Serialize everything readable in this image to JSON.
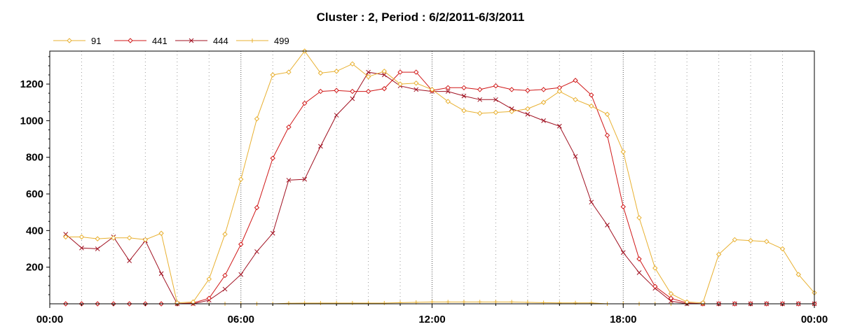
{
  "chart_data": {
    "type": "line",
    "title": "Cluster : 2, Period : 6/2/2011-6/3/2011",
    "xlabel": "",
    "ylabel": "",
    "x_ticks": [
      "00:00",
      "06:00",
      "12:00",
      "18:00",
      "00:00"
    ],
    "y_ticks": [
      200,
      400,
      600,
      800,
      1000,
      1200
    ],
    "xlim_hours": [
      0,
      24
    ],
    "ylim": [
      0,
      1380
    ],
    "grid": "vertical dotted lines every hour",
    "legend_position": "top-left",
    "x_hours": [
      0.5,
      1,
      1.5,
      2,
      2.5,
      3,
      3.5,
      4,
      4.5,
      5,
      5.5,
      6,
      6.5,
      7,
      7.5,
      8,
      8.5,
      9,
      9.5,
      10,
      10.5,
      11,
      11.5,
      12,
      12.5,
      13,
      13.5,
      14,
      14.5,
      15,
      15.5,
      16,
      16.5,
      17,
      17.5,
      18,
      18.5,
      19,
      19.5,
      20,
      20.5,
      21,
      21.5,
      22,
      22.5,
      23,
      23.5,
      24
    ],
    "series": [
      {
        "name": "91",
        "color": "#E8B030",
        "marker": "diamond",
        "values": [
          365,
          365,
          355,
          360,
          360,
          350,
          385,
          5,
          10,
          135,
          380,
          680,
          1010,
          1250,
          1265,
          1380,
          1260,
          1270,
          1310,
          1240,
          1270,
          1200,
          1205,
          1170,
          1105,
          1055,
          1040,
          1045,
          1050,
          1065,
          1100,
          1160,
          1115,
          1080,
          1035,
          830,
          470,
          195,
          55,
          10,
          5,
          270,
          350,
          345,
          340,
          300,
          160,
          60
        ]
      },
      {
        "name": "441",
        "color": "#D01818",
        "marker": "diamond",
        "values": [
          0,
          0,
          0,
          0,
          0,
          0,
          0,
          0,
          5,
          30,
          155,
          325,
          525,
          795,
          965,
          1095,
          1160,
          1165,
          1160,
          1160,
          1175,
          1265,
          1265,
          1165,
          1180,
          1180,
          1170,
          1190,
          1170,
          1165,
          1170,
          1180,
          1220,
          1140,
          920,
          530,
          245,
          95,
          30,
          5,
          0,
          0,
          0,
          0,
          0,
          0,
          0,
          0
        ]
      },
      {
        "name": "444",
        "color": "#A01020",
        "marker": "x",
        "values": [
          380,
          305,
          300,
          365,
          235,
          345,
          165,
          0,
          0,
          20,
          80,
          160,
          285,
          385,
          675,
          680,
          860,
          1030,
          1120,
          1265,
          1250,
          1190,
          1170,
          1160,
          1160,
          1135,
          1115,
          1115,
          1065,
          1035,
          1000,
          970,
          805,
          555,
          430,
          280,
          170,
          85,
          15,
          0,
          0,
          0,
          0,
          0,
          0,
          0,
          0,
          0
        ]
      },
      {
        "name": "499",
        "color": "#E8B030",
        "marker": "plus",
        "values": [
          0,
          0,
          0,
          0,
          0,
          0,
          0,
          0,
          0,
          0,
          0,
          0,
          0,
          0,
          3,
          4,
          4,
          4,
          4,
          4,
          4,
          6,
          8,
          10,
          10,
          10,
          10,
          10,
          10,
          8,
          6,
          5,
          5,
          5,
          0,
          0,
          0,
          0,
          0,
          0,
          0,
          0,
          0,
          0,
          0,
          0,
          0,
          0
        ]
      }
    ]
  }
}
